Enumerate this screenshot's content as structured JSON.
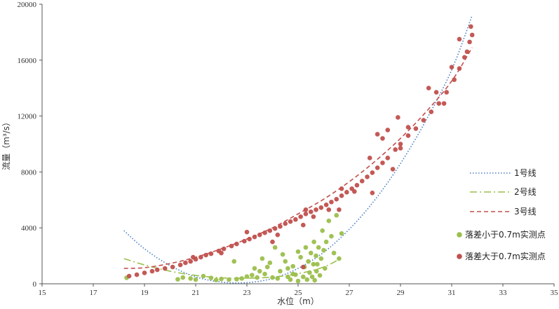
{
  "chart_data": {
    "type": "scatter",
    "xlabel": "水位（m）",
    "ylabel": "流量（m³/s）",
    "xlim": [
      15,
      35
    ],
    "ylim": [
      0,
      20000
    ],
    "x_ticks": [
      15,
      17,
      19,
      21,
      23,
      25,
      27,
      29,
      31,
      33,
      35
    ],
    "y_ticks": [
      0,
      4000,
      8000,
      12000,
      16000,
      20000
    ],
    "grid": false,
    "legend_position": "right",
    "legend": [
      {
        "key": "c1",
        "label": "1号线",
        "kind": "line",
        "dash": "dotted",
        "color": "#4a7fc1"
      },
      {
        "key": "c2",
        "label": "2号线",
        "kind": "line",
        "dash": "dashdot",
        "color": "#9bbf4c"
      },
      {
        "key": "c3",
        "label": "3号线",
        "kind": "line",
        "dash": "dashed",
        "color": "#c0504d"
      },
      {
        "key": "s1",
        "label": "落差小于0.7m实测点",
        "kind": "marker",
        "color": "#9bbf4c"
      },
      {
        "key": "s2",
        "label": "落差大于0.7m实测点",
        "kind": "marker",
        "color": "#c0504d"
      }
    ],
    "curves": [
      {
        "key": "c1",
        "color": "#4a7fc1",
        "dash": "dotted",
        "x": [
          18.2,
          19,
          20,
          21,
          22,
          23,
          24,
          25,
          26,
          27,
          28,
          29,
          30,
          31,
          31.8
        ],
        "y": [
          3800,
          2500,
          1300,
          500,
          120,
          80,
          380,
          1100,
          2250,
          3900,
          6000,
          8600,
          11700,
          15300,
          19200
        ]
      },
      {
        "key": "c2",
        "color": "#9bbf4c",
        "dash": "dashdot",
        "x": [
          18.2,
          19,
          20,
          21,
          22,
          23,
          24,
          25,
          26,
          26.7
        ],
        "y": [
          1800,
          1350,
          900,
          600,
          430,
          400,
          480,
          720,
          1200,
          1850
        ]
      },
      {
        "key": "c3",
        "color": "#c0504d",
        "dash": "dashed",
        "x": [
          18.2,
          19,
          20,
          21,
          22,
          23,
          24,
          25,
          26,
          27,
          28,
          29,
          30,
          31,
          31.8
        ],
        "y": [
          1100,
          1150,
          1450,
          1900,
          2500,
          3200,
          4000,
          5000,
          6050,
          7300,
          8750,
          10400,
          12300,
          14500,
          16900
        ]
      }
    ],
    "series": [
      {
        "key": "s1",
        "color": "#9bbf4c",
        "points": [
          [
            18.3,
            430
          ],
          [
            20.3,
            320
          ],
          [
            20.5,
            450
          ],
          [
            20.8,
            380
          ],
          [
            21.0,
            300
          ],
          [
            21.3,
            550
          ],
          [
            21.6,
            420
          ],
          [
            21.8,
            270
          ],
          [
            22.0,
            340
          ],
          [
            22.3,
            300
          ],
          [
            22.6,
            330
          ],
          [
            22.8,
            380
          ],
          [
            23.0,
            520
          ],
          [
            23.2,
            620
          ],
          [
            23.4,
            450
          ],
          [
            23.5,
            900
          ],
          [
            23.7,
            700
          ],
          [
            23.8,
            1200
          ],
          [
            23.9,
            1500
          ],
          [
            24.0,
            450
          ],
          [
            24.2,
            380
          ],
          [
            24.3,
            900
          ],
          [
            24.5,
            1600
          ],
          [
            24.6,
            500
          ],
          [
            24.7,
            300
          ],
          [
            24.8,
            1250
          ],
          [
            24.9,
            650
          ],
          [
            25.0,
            200
          ],
          [
            25.1,
            1900
          ],
          [
            25.2,
            500
          ],
          [
            25.25,
            1200
          ],
          [
            25.3,
            2600
          ],
          [
            25.35,
            300
          ],
          [
            25.4,
            1600
          ],
          [
            25.45,
            800
          ],
          [
            25.5,
            2200
          ],
          [
            25.55,
            500
          ],
          [
            25.6,
            1400
          ],
          [
            25.62,
            3000
          ],
          [
            25.65,
            250
          ],
          [
            25.7,
            2000
          ],
          [
            25.72,
            900
          ],
          [
            25.75,
            1400
          ],
          [
            25.8,
            2600
          ],
          [
            25.85,
            600
          ],
          [
            25.9,
            1800
          ],
          [
            25.95,
            3800
          ],
          [
            26.0,
            2400
          ],
          [
            26.05,
            1100
          ],
          [
            26.1,
            3000
          ],
          [
            26.2,
            4500
          ],
          [
            26.3,
            3400
          ],
          [
            26.4,
            2200
          ],
          [
            26.5,
            4900
          ],
          [
            26.6,
            1800
          ],
          [
            26.7,
            3600
          ],
          [
            24.1,
            2600
          ],
          [
            24.4,
            2100
          ],
          [
            23.6,
            1800
          ],
          [
            22.5,
            1600
          ],
          [
            23.3,
            1100
          ],
          [
            24.6,
            1100
          ],
          [
            25.0,
            2300
          ],
          [
            24.8,
            700
          ]
        ]
      },
      {
        "key": "s2",
        "color": "#c0504d",
        "points": [
          [
            18.4,
            550
          ],
          [
            18.7,
            650
          ],
          [
            19.0,
            780
          ],
          [
            19.3,
            900
          ],
          [
            19.5,
            1000
          ],
          [
            19.8,
            1100
          ],
          [
            20.1,
            1200
          ],
          [
            20.4,
            1350
          ],
          [
            20.6,
            1500
          ],
          [
            20.8,
            1600
          ],
          [
            21.0,
            1750
          ],
          [
            21.2,
            1900
          ],
          [
            21.4,
            2050
          ],
          [
            21.6,
            2150
          ],
          [
            21.9,
            2350
          ],
          [
            22.1,
            2500
          ],
          [
            22.4,
            2700
          ],
          [
            22.6,
            2850
          ],
          [
            22.9,
            3050
          ],
          [
            23.1,
            3200
          ],
          [
            23.3,
            3350
          ],
          [
            23.5,
            3500
          ],
          [
            23.7,
            3650
          ],
          [
            23.9,
            3800
          ],
          [
            24.1,
            3950
          ],
          [
            24.3,
            4100
          ],
          [
            24.5,
            4300
          ],
          [
            24.7,
            4450
          ],
          [
            24.9,
            4600
          ],
          [
            25.1,
            4800
          ],
          [
            25.3,
            5000
          ],
          [
            25.5,
            5150
          ],
          [
            25.7,
            5300
          ],
          [
            25.9,
            5450
          ],
          [
            26.1,
            5650
          ],
          [
            26.3,
            5850
          ],
          [
            26.5,
            6050
          ],
          [
            26.7,
            6300
          ],
          [
            26.9,
            6550
          ],
          [
            27.1,
            6800
          ],
          [
            27.3,
            7050
          ],
          [
            27.5,
            7350
          ],
          [
            27.7,
            7650
          ],
          [
            27.9,
            7950
          ],
          [
            28.1,
            8300
          ],
          [
            28.3,
            8650
          ],
          [
            28.5,
            9000
          ],
          [
            28.8,
            9600
          ],
          [
            29.0,
            10000
          ],
          [
            29.3,
            10600
          ],
          [
            29.6,
            11100
          ],
          [
            29.9,
            11700
          ],
          [
            30.2,
            12300
          ],
          [
            30.5,
            12900
          ],
          [
            30.8,
            13700
          ],
          [
            31.1,
            14600
          ],
          [
            31.3,
            15400
          ],
          [
            31.5,
            16200
          ],
          [
            31.7,
            17300
          ],
          [
            31.8,
            17800
          ],
          [
            31.75,
            18400
          ],
          [
            28.1,
            10700
          ],
          [
            28.3,
            10400
          ],
          [
            28.5,
            11000
          ],
          [
            28.9,
            11900
          ],
          [
            29.3,
            11200
          ],
          [
            30.1,
            14000
          ],
          [
            30.4,
            13700
          ],
          [
            30.7,
            12900
          ],
          [
            31.0,
            15500
          ],
          [
            31.3,
            17500
          ],
          [
            31.6,
            16600
          ],
          [
            27.8,
            9000
          ],
          [
            26.7,
            6800
          ],
          [
            25.2,
            4200
          ],
          [
            24.2,
            3500
          ],
          [
            23.0,
            3700
          ],
          [
            22.0,
            2200
          ],
          [
            20.9,
            1900
          ],
          [
            26.2,
            5300
          ],
          [
            26.6,
            5300
          ],
          [
            27.2,
            6600
          ],
          [
            27.9,
            6500
          ],
          [
            28.7,
            8200
          ],
          [
            29.0,
            9700
          ],
          [
            25.3,
            5300
          ],
          [
            25.6,
            4800
          ],
          [
            24.0,
            3000
          ],
          [
            25.2,
            1200
          ]
        ]
      }
    ]
  }
}
